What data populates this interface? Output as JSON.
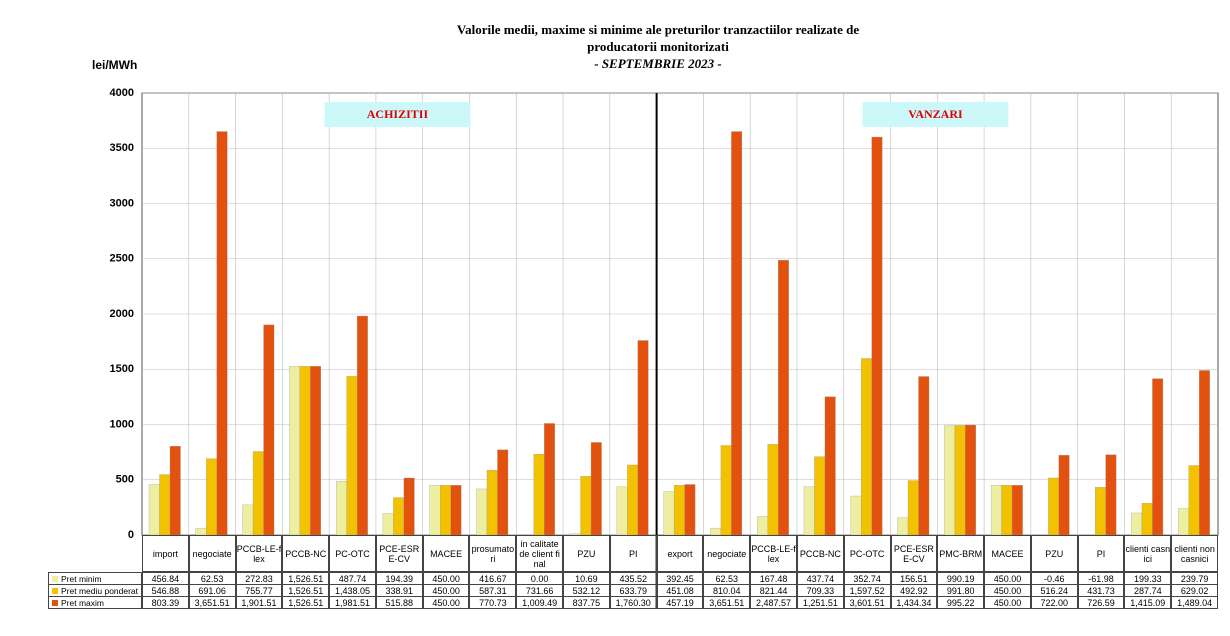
{
  "chart_data": {
    "type": "bar",
    "title": [
      "Valorile medii, maxime si minime ale preturilor tranzactiilor realizate de",
      "producatorii monitorizati"
    ],
    "subtitle": "- SEPTEMBRIE 2023 -",
    "y_label": "lei/MWh",
    "annotations": [
      "ACHIZITII",
      "VANZARI"
    ],
    "categories": [
      "import",
      "negociate",
      "PCCB-LE-flex",
      "PCCB-NC",
      "PC-OTC",
      "PCE-ESRE-CV",
      "MACEE",
      "prosumatori",
      "in calitate de client final",
      "PZU",
      "PI",
      "export",
      "negociate",
      "PCCB-LE-flex",
      "PCCB-NC",
      "PC-OTC",
      "PCE-ESRE-CV",
      "PMC-BRM",
      "MACEE",
      "PZU",
      "PI",
      "clienti casnici",
      "clienti noncasnici"
    ],
    "series": [
      {
        "name": "Pret minim",
        "color": "#eeeea0",
        "values": [
          456.84,
          62.53,
          272.83,
          1526.51,
          487.74,
          194.39,
          450.0,
          416.67,
          0.0,
          10.69,
          435.52,
          392.45,
          62.53,
          167.48,
          437.74,
          352.74,
          156.51,
          990.19,
          450.0,
          -0.46,
          -61.98,
          199.33,
          239.79
        ],
        "value_labels": [
          "456.84",
          "62.53",
          "272.83",
          "1,526.51",
          "487.74",
          "194.39",
          "450.00",
          "416.67",
          "0.00",
          "10.69",
          "435.52",
          "392.45",
          "62.53",
          "167.48",
          "437.74",
          "352.74",
          "156.51",
          "990.19",
          "450.00",
          "-0.46",
          "-61.98",
          "199.33",
          "239.79"
        ]
      },
      {
        "name": "Pret mediu ponderat",
        "color": "#f2c200",
        "values": [
          546.88,
          691.06,
          755.77,
          1526.51,
          1438.05,
          338.91,
          450.0,
          587.31,
          731.66,
          532.12,
          633.79,
          451.08,
          810.04,
          821.44,
          709.33,
          1597.52,
          492.92,
          991.8,
          450.0,
          516.24,
          431.73,
          287.74,
          629.02
        ],
        "value_labels": [
          "546.88",
          "691.06",
          "755.77",
          "1,526.51",
          "1,438.05",
          "338.91",
          "450.00",
          "587.31",
          "731.66",
          "532.12",
          "633.79",
          "451.08",
          "810.04",
          "821.44",
          "709.33",
          "1,597.52",
          "492.92",
          "991.80",
          "450.00",
          "516.24",
          "431.73",
          "287.74",
          "629.02"
        ]
      },
      {
        "name": "Pret maxim",
        "color": "#e2520e",
        "values": [
          803.39,
          3651.51,
          1901.51,
          1526.51,
          1981.51,
          515.88,
          450.0,
          770.73,
          1009.49,
          837.75,
          1760.3,
          457.19,
          3651.51,
          2487.57,
          1251.51,
          3601.51,
          1434.34,
          995.22,
          450.0,
          722.0,
          726.59,
          1415.09,
          1489.04
        ],
        "value_labels": [
          "803.39",
          "3,651.51",
          "1,901.51",
          "1,526.51",
          "1,981.51",
          "515.88",
          "450.00",
          "770.73",
          "1,009.49",
          "837.75",
          "1,760.30",
          "457.19",
          "3,651.51",
          "2,487.57",
          "1,251.51",
          "3,601.51",
          "1,434.34",
          "995.22",
          "450.00",
          "722.00",
          "726.59",
          "1,415.09",
          "1,489.04"
        ]
      }
    ],
    "ylim": [
      0,
      4000
    ],
    "yticks": [
      0,
      500,
      1000,
      1500,
      2000,
      2500,
      3000,
      3500,
      4000
    ],
    "grid": true
  }
}
